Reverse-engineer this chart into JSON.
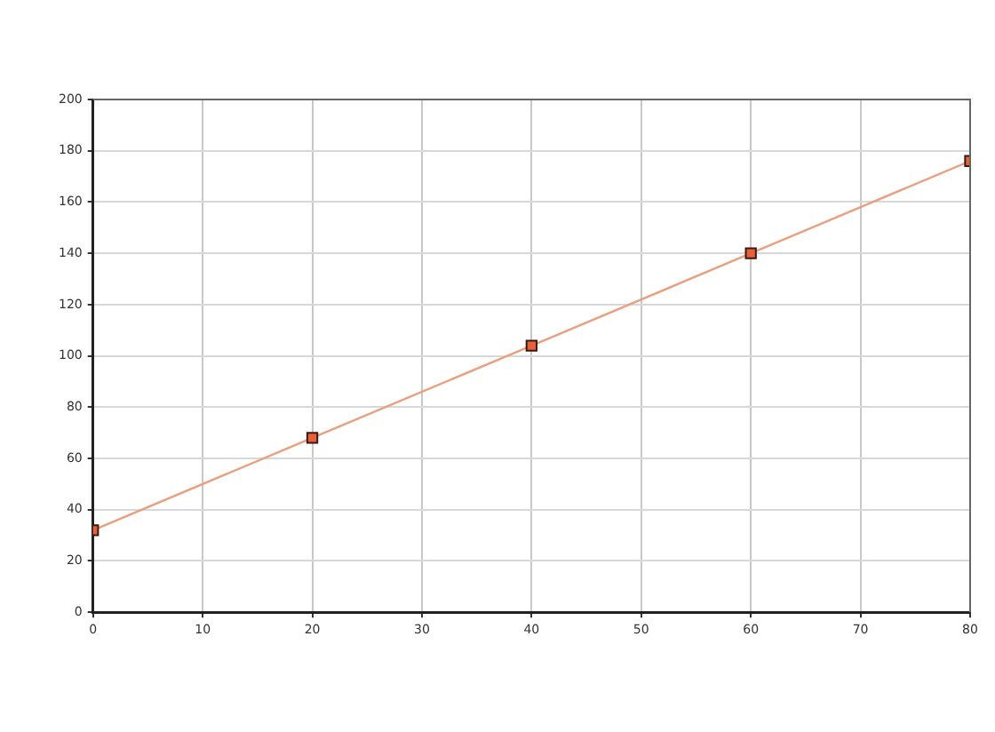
{
  "chart_data": {
    "type": "line",
    "x": [
      0,
      20,
      40,
      60,
      80
    ],
    "series": [
      {
        "color": "#e8a080",
        "values": [
          32,
          68,
          104,
          140,
          176
        ]
      }
    ],
    "xlim": [
      0,
      80
    ],
    "xticks": [
      0,
      10,
      20,
      30,
      40,
      50,
      60,
      70,
      80
    ],
    "ylim": [
      0,
      200
    ],
    "yticks": [
      0,
      20,
      40,
      60,
      80,
      100,
      120,
      140,
      160,
      180,
      200
    ],
    "grid": true,
    "legend": false,
    "marker": "square",
    "line_style": "solid"
  }
}
